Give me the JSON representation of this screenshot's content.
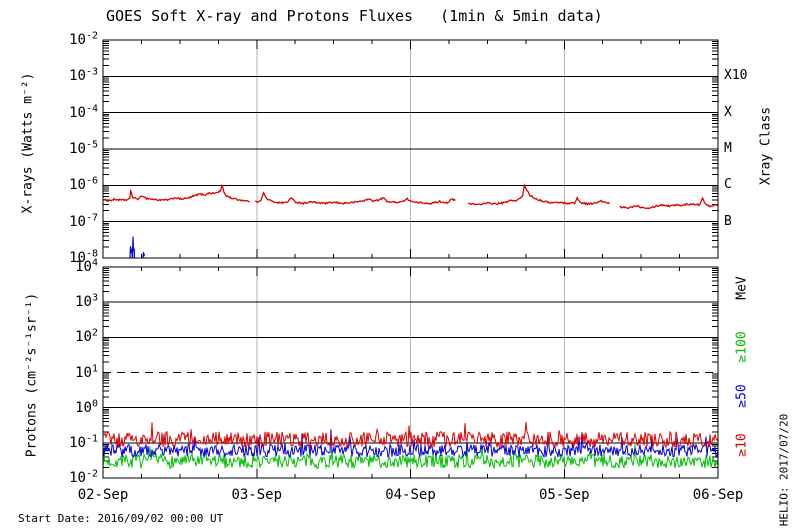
{
  "title": "GOES Soft X-ray and Protons Fluxes   (1min & 5min data)",
  "footer": {
    "start_date": "Start Date: 2016/09/02 00:00 UT"
  },
  "watermark": "HELIO: 2017/07/20",
  "colors": {
    "red": "#dd0000",
    "blue": "#0000dd",
    "green": "#00c000",
    "grid_gray": "#b3b3b3",
    "axis_black": "#000000"
  },
  "chart_data": [
    {
      "type": "line",
      "name": "xray-flux-panel",
      "title": "GOES Soft X-ray and Protons Fluxes   (1min & 5min data)",
      "ylabel": "X-rays (Watts m⁻²)",
      "ylim": [
        1e-08,
        0.01
      ],
      "y_exponents": [
        -2,
        -3,
        -4,
        -5,
        -6,
        -7,
        -8
      ],
      "x_tick_labels": [
        "02-Sep",
        "03-Sep",
        "04-Sep",
        "05-Sep",
        "06-Sep"
      ],
      "x_span_days": 4,
      "grid": {
        "horizontal_decades": true,
        "vertical_day_lines": true
      },
      "right_axis_label": "Xray Class",
      "xray_classes": [
        {
          "label": "X10",
          "flux": 0.001
        },
        {
          "label": "X",
          "flux": 0.0001
        },
        {
          "label": "M",
          "flux": 1e-05
        },
        {
          "label": "C",
          "flux": 1e-06
        },
        {
          "label": "B",
          "flux": 1e-07
        }
      ],
      "series": [
        {
          "name": "xray-long",
          "color": "#dd0000",
          "keypoints": [
            [
              0.0,
              4e-07
            ],
            [
              0.04,
              3.8e-07
            ],
            [
              0.08,
              4.1e-07
            ],
            [
              0.12,
              3.9e-07
            ],
            [
              0.16,
              4e-07
            ],
            [
              0.175,
              4.2e-07
            ],
            [
              0.182,
              8.8e-07
            ],
            [
              0.19,
              4.6e-07
            ],
            [
              0.23,
              4.2e-07
            ],
            [
              0.26,
              5.2e-07
            ],
            [
              0.28,
              4.4e-07
            ],
            [
              0.33,
              4.1e-07
            ],
            [
              0.38,
              3.9e-07
            ],
            [
              0.43,
              4e-07
            ],
            [
              0.47,
              4.6e-07
            ],
            [
              0.5,
              4.2e-07
            ],
            [
              0.55,
              4.4e-07
            ],
            [
              0.6,
              5.2e-07
            ],
            [
              0.63,
              5.8e-07
            ],
            [
              0.66,
              5.4e-07
            ],
            [
              0.69,
              6.2e-07
            ],
            [
              0.72,
              6e-07
            ],
            [
              0.745,
              6.4e-07
            ],
            [
              0.765,
              7e-07
            ],
            [
              0.775,
              1.02e-06
            ],
            [
              0.785,
              6.8e-07
            ],
            [
              0.8,
              5.2e-07
            ],
            [
              0.84,
              4.4e-07
            ],
            [
              0.88,
              4e-07
            ],
            [
              0.92,
              3.8e-07
            ],
            [
              0.95,
              3.6e-07
            ],
            [
              1.0,
              3.5e-07
            ],
            [
              1.03,
              4e-07
            ],
            [
              1.045,
              6.4e-07
            ],
            [
              1.06,
              4.4e-07
            ],
            [
              1.1,
              3.6e-07
            ],
            [
              1.15,
              3.3e-07
            ],
            [
              1.2,
              3.4e-07
            ],
            [
              1.22,
              4.6e-07
            ],
            [
              1.25,
              3.5e-07
            ],
            [
              1.3,
              3.2e-07
            ],
            [
              1.35,
              3.5e-07
            ],
            [
              1.4,
              3.3e-07
            ],
            [
              1.45,
              3.2e-07
            ],
            [
              1.5,
              3.4e-07
            ],
            [
              1.55,
              3.2e-07
            ],
            [
              1.6,
              3.3e-07
            ],
            [
              1.65,
              3.5e-07
            ],
            [
              1.7,
              3.8e-07
            ],
            [
              1.73,
              4.2e-07
            ],
            [
              1.76,
              3.7e-07
            ],
            [
              1.8,
              4e-07
            ],
            [
              1.82,
              4.6e-07
            ],
            [
              1.85,
              3.6e-07
            ],
            [
              1.9,
              3.4e-07
            ],
            [
              1.95,
              3.6e-07
            ],
            [
              1.98,
              4.2e-07
            ],
            [
              2.02,
              3.4e-07
            ],
            [
              2.08,
              3.3e-07
            ],
            [
              2.14,
              3.2e-07
            ],
            [
              2.19,
              3.6e-07
            ],
            [
              2.24,
              3.3e-07
            ],
            [
              2.27,
              4.2e-07
            ],
            [
              2.29,
              3.8e-07
            ],
            [
              2.38,
              3.1e-07
            ],
            [
              2.44,
              3e-07
            ],
            [
              2.5,
              3.2e-07
            ],
            [
              2.56,
              3.1e-07
            ],
            [
              2.62,
              3.4e-07
            ],
            [
              2.66,
              3.9e-07
            ],
            [
              2.69,
              3.7e-07
            ],
            [
              2.71,
              4.4e-07
            ],
            [
              2.73,
              5e-07
            ],
            [
              2.74,
              1.05e-06
            ],
            [
              2.755,
              7.5e-07
            ],
            [
              2.78,
              5.2e-07
            ],
            [
              2.82,
              4.2e-07
            ],
            [
              2.87,
              3.6e-07
            ],
            [
              2.92,
              3.3e-07
            ],
            [
              2.97,
              3.4e-07
            ],
            [
              3.02,
              3.2e-07
            ],
            [
              3.07,
              3.3e-07
            ],
            [
              3.085,
              4.6e-07
            ],
            [
              3.1,
              3.4e-07
            ],
            [
              3.15,
              3.1e-07
            ],
            [
              3.2,
              3.2e-07
            ],
            [
              3.24,
              3.7e-07
            ],
            [
              3.27,
              3.3e-07
            ],
            [
              3.29,
              3.2e-07
            ],
            [
              3.36,
              2.5e-07
            ],
            [
              3.42,
              2.4e-07
            ],
            [
              3.47,
              2.8e-07
            ],
            [
              3.5,
              2.5e-07
            ],
            [
              3.55,
              2.4e-07
            ],
            [
              3.6,
              2.7e-07
            ],
            [
              3.64,
              2.9e-07
            ],
            [
              3.68,
              2.7e-07
            ],
            [
              3.72,
              2.9e-07
            ],
            [
              3.76,
              2.8e-07
            ],
            [
              3.8,
              3e-07
            ],
            [
              3.84,
              3.1e-07
            ],
            [
              3.88,
              2.9e-07
            ],
            [
              3.9,
              4.3e-07
            ],
            [
              3.92,
              3e-07
            ],
            [
              3.95,
              2.7e-07
            ],
            [
              3.98,
              2.9e-07
            ],
            [
              4.0,
              3e-07
            ]
          ],
          "gaps": [
            [
              0.955,
              0.985
            ],
            [
              2.295,
              2.375
            ],
            [
              3.295,
              3.355
            ]
          ]
        },
        {
          "name": "xray-short",
          "color": "#0000dd",
          "floor": 9e-09,
          "bursts": [
            [
              0.175,
              0.205,
              7e-08
            ],
            [
              0.255,
              0.275,
              1.6e-08
            ],
            [
              0.33,
              0.35,
              1.3e-08
            ],
            [
              0.44,
              0.55,
              1.6e-08
            ],
            [
              0.55,
              0.74,
              2.8e-08
            ],
            [
              0.755,
              0.775,
              4.2e-08
            ],
            [
              0.78,
              0.9,
              1.8e-08
            ],
            [
              1.0,
              1.1,
              2.2e-08
            ],
            [
              1.15,
              1.2,
              4e-08
            ],
            [
              1.27,
              1.4,
              1.3e-08
            ],
            [
              1.46,
              1.52,
              2e-08
            ],
            [
              1.68,
              1.84,
              2.2e-08
            ],
            [
              1.86,
              1.95,
              1.2e-08
            ],
            [
              2.28,
              2.34,
              3e-08
            ],
            [
              2.4,
              2.47,
              1.5e-08
            ],
            [
              2.5,
              2.6,
              2.2e-08
            ],
            [
              2.7,
              2.78,
              6e-08
            ],
            [
              2.79,
              2.9,
              2e-08
            ],
            [
              2.93,
              2.99,
              1.2e-08
            ],
            [
              3.21,
              3.28,
              1.8e-08
            ],
            [
              3.32,
              3.38,
              2e-08
            ],
            [
              3.43,
              3.5,
              1.4e-08
            ],
            [
              3.55,
              3.62,
              1.2e-08
            ],
            [
              3.7,
              3.88,
              2.2e-08
            ],
            [
              3.9,
              3.97,
              1.5e-08
            ]
          ]
        }
      ]
    },
    {
      "type": "line",
      "name": "proton-flux-panel",
      "ylabel": "Protons (cm⁻²s⁻¹sr⁻¹)",
      "ylim": [
        0.01,
        10000.0
      ],
      "y_exponents": [
        4,
        3,
        2,
        1,
        0,
        -1,
        -2
      ],
      "x_span_days": 4,
      "threshold": {
        "flux": 10,
        "style": "dashed"
      },
      "right_axis_label": "MeV",
      "right_labels": [
        {
          "text": "MeV",
          "color": "#000000"
        },
        {
          "text": "≥100",
          "color": "#00c000"
        },
        {
          "text": "≥50",
          "color": "#0000dd"
        },
        {
          "text": "≥10",
          "color": "#dd0000"
        }
      ],
      "series": [
        {
          "name": "protons-ge100",
          "label": "≥100",
          "color": "#00c000",
          "level": 0.03,
          "spread": 0.2,
          "spike_chance": 0.03,
          "spike_log": 0.32
        },
        {
          "name": "protons-ge50",
          "label": "≥50",
          "color": "#0000dd",
          "level": 0.06,
          "spread": 0.18,
          "spike_chance": 0.03,
          "spike_log": 0.3
        },
        {
          "name": "protons-ge10",
          "label": "≥10",
          "color": "#dd0000",
          "level": 0.125,
          "spread": 0.22,
          "spike_chance": 0.03,
          "spike_log": 0.33
        }
      ]
    }
  ]
}
